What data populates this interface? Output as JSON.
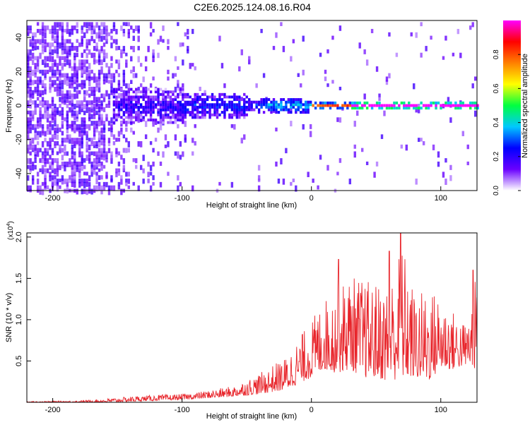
{
  "title": "C2E6.2025.124.08.16.R04",
  "chart_data": [
    {
      "type": "heatmap",
      "xlabel": "Height of straight line (km)",
      "ylabel": "Frequency (Hz)",
      "xlim": [
        -220,
        128
      ],
      "ylim": [
        -50,
        50
      ],
      "xticks": [
        -200,
        -100,
        0,
        100
      ],
      "yticks": [
        -40,
        -20,
        0,
        20,
        40
      ],
      "colorbar": {
        "label": "Normalized spectral amplitude",
        "range": [
          0,
          1
        ],
        "ticks": [
          "0.0",
          "0.2",
          "0.4",
          "0.6",
          "0.8"
        ],
        "tick_values": [
          0,
          0.2,
          0.4,
          0.6,
          0.8
        ],
        "colormap": [
          "#ffffff",
          "#6a00ff",
          "#0000ff",
          "#00c8ff",
          "#00ff40",
          "#ffff00",
          "#ff8000",
          "#ff0000",
          "#ff00ff"
        ]
      },
      "description_points": [
        {
          "x": -210,
          "note_level": 0.15
        },
        {
          "x": -150,
          "note_level": 0.25
        },
        {
          "x": -100,
          "note_level": 0.3
        },
        {
          "x": -50,
          "note_level": 0.45
        },
        {
          "x": 0,
          "note_level": 0.6
        },
        {
          "x": 50,
          "note_level": 0.9
        },
        {
          "x": 120,
          "note_level": 1.0
        }
      ]
    },
    {
      "type": "line",
      "xlabel": "Height of straight line (km)",
      "ylabel": "SNR (10 * v/v)",
      "y_multiplier": "(x10",
      "y_multiplier_exp": "4",
      "y_multiplier_close": ")",
      "xlim": [
        -220,
        128
      ],
      "ylim": [
        0,
        2.05
      ],
      "xticks": [
        -200,
        -100,
        0,
        100
      ],
      "yticks": [
        0.5,
        1.0,
        1.5,
        2.0
      ],
      "ytick_labels": [
        "0.5",
        "1.0",
        "1.5",
        "2.0"
      ],
      "line_color": "#e8242a",
      "envelope": {
        "x": [
          -220,
          -180,
          -160,
          -140,
          -120,
          -100,
          -80,
          -60,
          -40,
          -20,
          0,
          10,
          20,
          30,
          40,
          50,
          60,
          70,
          80,
          90,
          100,
          110,
          120,
          128
        ],
        "low": [
          0.0,
          0.0,
          0.0,
          0.01,
          0.02,
          0.03,
          0.05,
          0.07,
          0.1,
          0.15,
          0.3,
          0.4,
          0.35,
          0.4,
          0.3,
          0.3,
          0.25,
          0.3,
          0.3,
          0.25,
          0.4,
          0.4,
          0.45,
          0.4
        ],
        "high": [
          0.01,
          0.02,
          0.04,
          0.07,
          0.09,
          0.1,
          0.14,
          0.2,
          0.35,
          0.55,
          1.0,
          1.25,
          1.4,
          1.55,
          1.5,
          1.45,
          1.45,
          1.95,
          1.3,
          1.4,
          1.3,
          1.1,
          0.95,
          1.6
        ]
      },
      "peaks": [
        {
          "x": 21,
          "y": 1.73
        },
        {
          "x": 60,
          "y": 1.83
        },
        {
          "x": 69,
          "y": 2.05
        },
        {
          "x": 125,
          "y": 1.6
        }
      ]
    }
  ]
}
